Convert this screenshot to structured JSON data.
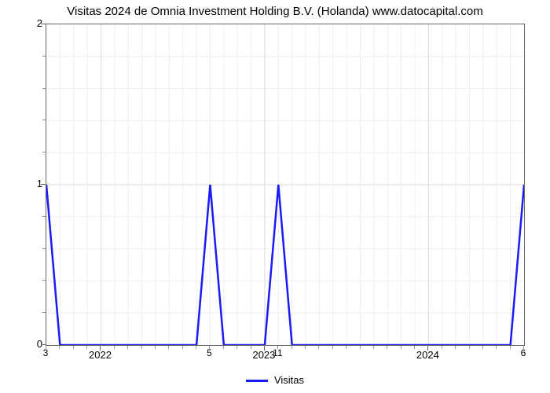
{
  "chart": {
    "type": "line",
    "title": "Visitas 2024 de Omnia Investment Holding B.V. (Holanda) www.datocapital.com",
    "title_fontsize": 15,
    "background_color": "#ffffff",
    "plot_border_color": "#666666",
    "grid_color": "#d9d9d9",
    "minor_grid_color": "#eeeeee",
    "line_color": "#1a1aff",
    "line_width": 2.5,
    "legend_label": "Visitas",
    "y": {
      "min": 0,
      "max": 2,
      "ticks": [
        0,
        1,
        2
      ],
      "minor_between": 4
    },
    "x": {
      "n_points": 36,
      "major_tick_indices": [
        4,
        16,
        28
      ],
      "major_tick_labels": [
        "2022",
        "2023",
        "2024"
      ],
      "minor_every": 1,
      "inline_labels": [
        {
          "index": 0,
          "text": "3"
        },
        {
          "index": 12,
          "text": "5"
        },
        {
          "index": 17,
          "text": "11"
        },
        {
          "index": 35,
          "text": "6"
        }
      ]
    },
    "series": [
      1,
      0,
      0,
      0,
      0,
      0,
      0,
      0,
      0,
      0,
      0,
      0,
      1,
      0,
      0,
      0,
      0,
      1,
      0,
      0,
      0,
      0,
      0,
      0,
      0,
      0,
      0,
      0,
      0,
      0,
      0,
      0,
      0,
      0,
      0,
      1
    ]
  }
}
